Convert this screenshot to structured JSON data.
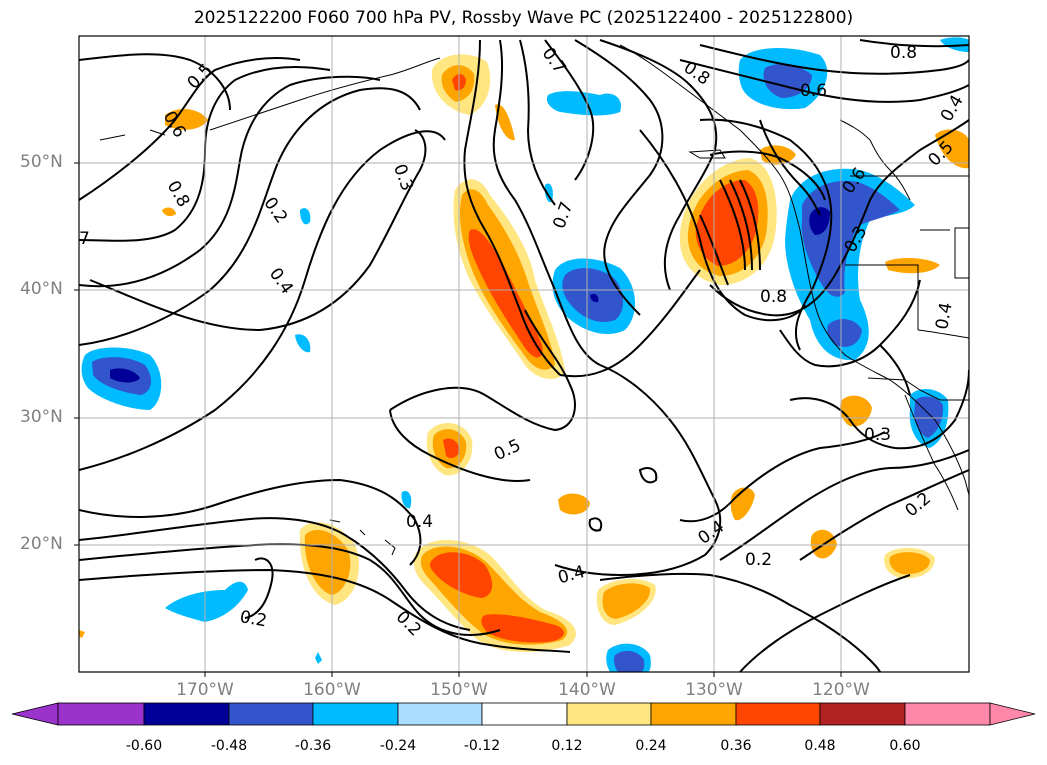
{
  "title": "2025122200 F060 700 hPa PV, Rossby Wave PC (2025122400 - 2025122800)",
  "lat_labels": [
    "50°N",
    "40°N",
    "30°N",
    "20°N"
  ],
  "lon_labels": [
    "170°W",
    "160°W",
    "150°W",
    "140°W",
    "130°W",
    "120°W"
  ],
  "contour_labels": [
    "0.5",
    "0.6",
    "0.8",
    "7",
    "0.2",
    "0.4",
    "0.3",
    "0.7",
    "0.5",
    "0.4",
    "0.4",
    "0.2",
    "0.2",
    "0.7",
    "0.8",
    "0.6",
    "0.8",
    "0.4",
    "0.5",
    "0.6",
    "0.3",
    "0.8",
    "0.4",
    "0.3",
    "0.2",
    "0.4",
    "0.2"
  ],
  "colorbar": {
    "ticks": [
      "-0.60",
      "-0.48",
      "-0.36",
      "-0.24",
      "-0.12",
      "0.12",
      "0.24",
      "0.36",
      "0.48",
      "0.60"
    ],
    "colors": {
      "lt_neg06": "#9933cc",
      "neg06": "#000099",
      "neg048": "#3355cc",
      "neg036": "#00bbff",
      "neg024": "#aaddff",
      "neutral": "#ffffff",
      "pos012": "#ffe680",
      "pos024": "#ffa500",
      "pos036": "#ff4500",
      "pos048": "#b22222",
      "gt060": "#ff88aa"
    }
  }
}
